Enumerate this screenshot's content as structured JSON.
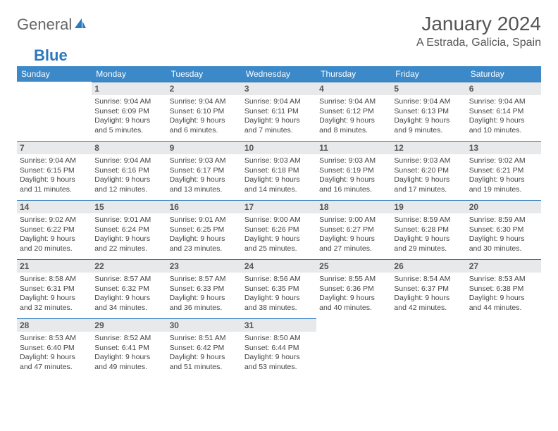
{
  "brand": {
    "part1": "General",
    "part2": "Blue"
  },
  "title": "January 2024",
  "location": "A Estrada, Galicia, Spain",
  "colors": {
    "header_bg": "#3b89c9",
    "daynum_bg": "#e7e9ea",
    "daynum_border": "#2b78bd",
    "text": "#444444",
    "title_text": "#555555"
  },
  "typography": {
    "title_fontsize": 28,
    "location_fontsize": 16,
    "weekday_fontsize": 12,
    "daynum_fontsize": 12,
    "body_fontsize": 10.5
  },
  "layout": {
    "columns": 7,
    "rows": 5
  },
  "weekdays": [
    "Sunday",
    "Monday",
    "Tuesday",
    "Wednesday",
    "Thursday",
    "Friday",
    "Saturday"
  ],
  "weeks": [
    [
      {
        "n": "",
        "lines": []
      },
      {
        "n": "1",
        "lines": [
          "Sunrise: 9:04 AM",
          "Sunset: 6:09 PM",
          "Daylight: 9 hours",
          "and 5 minutes."
        ]
      },
      {
        "n": "2",
        "lines": [
          "Sunrise: 9:04 AM",
          "Sunset: 6:10 PM",
          "Daylight: 9 hours",
          "and 6 minutes."
        ]
      },
      {
        "n": "3",
        "lines": [
          "Sunrise: 9:04 AM",
          "Sunset: 6:11 PM",
          "Daylight: 9 hours",
          "and 7 minutes."
        ]
      },
      {
        "n": "4",
        "lines": [
          "Sunrise: 9:04 AM",
          "Sunset: 6:12 PM",
          "Daylight: 9 hours",
          "and 8 minutes."
        ]
      },
      {
        "n": "5",
        "lines": [
          "Sunrise: 9:04 AM",
          "Sunset: 6:13 PM",
          "Daylight: 9 hours",
          "and 9 minutes."
        ]
      },
      {
        "n": "6",
        "lines": [
          "Sunrise: 9:04 AM",
          "Sunset: 6:14 PM",
          "Daylight: 9 hours",
          "and 10 minutes."
        ]
      }
    ],
    [
      {
        "n": "7",
        "lines": [
          "Sunrise: 9:04 AM",
          "Sunset: 6:15 PM",
          "Daylight: 9 hours",
          "and 11 minutes."
        ]
      },
      {
        "n": "8",
        "lines": [
          "Sunrise: 9:04 AM",
          "Sunset: 6:16 PM",
          "Daylight: 9 hours",
          "and 12 minutes."
        ]
      },
      {
        "n": "9",
        "lines": [
          "Sunrise: 9:03 AM",
          "Sunset: 6:17 PM",
          "Daylight: 9 hours",
          "and 13 minutes."
        ]
      },
      {
        "n": "10",
        "lines": [
          "Sunrise: 9:03 AM",
          "Sunset: 6:18 PM",
          "Daylight: 9 hours",
          "and 14 minutes."
        ]
      },
      {
        "n": "11",
        "lines": [
          "Sunrise: 9:03 AM",
          "Sunset: 6:19 PM",
          "Daylight: 9 hours",
          "and 16 minutes."
        ]
      },
      {
        "n": "12",
        "lines": [
          "Sunrise: 9:03 AM",
          "Sunset: 6:20 PM",
          "Daylight: 9 hours",
          "and 17 minutes."
        ]
      },
      {
        "n": "13",
        "lines": [
          "Sunrise: 9:02 AM",
          "Sunset: 6:21 PM",
          "Daylight: 9 hours",
          "and 19 minutes."
        ]
      }
    ],
    [
      {
        "n": "14",
        "lines": [
          "Sunrise: 9:02 AM",
          "Sunset: 6:22 PM",
          "Daylight: 9 hours",
          "and 20 minutes."
        ]
      },
      {
        "n": "15",
        "lines": [
          "Sunrise: 9:01 AM",
          "Sunset: 6:24 PM",
          "Daylight: 9 hours",
          "and 22 minutes."
        ]
      },
      {
        "n": "16",
        "lines": [
          "Sunrise: 9:01 AM",
          "Sunset: 6:25 PM",
          "Daylight: 9 hours",
          "and 23 minutes."
        ]
      },
      {
        "n": "17",
        "lines": [
          "Sunrise: 9:00 AM",
          "Sunset: 6:26 PM",
          "Daylight: 9 hours",
          "and 25 minutes."
        ]
      },
      {
        "n": "18",
        "lines": [
          "Sunrise: 9:00 AM",
          "Sunset: 6:27 PM",
          "Daylight: 9 hours",
          "and 27 minutes."
        ]
      },
      {
        "n": "19",
        "lines": [
          "Sunrise: 8:59 AM",
          "Sunset: 6:28 PM",
          "Daylight: 9 hours",
          "and 29 minutes."
        ]
      },
      {
        "n": "20",
        "lines": [
          "Sunrise: 8:59 AM",
          "Sunset: 6:30 PM",
          "Daylight: 9 hours",
          "and 30 minutes."
        ]
      }
    ],
    [
      {
        "n": "21",
        "lines": [
          "Sunrise: 8:58 AM",
          "Sunset: 6:31 PM",
          "Daylight: 9 hours",
          "and 32 minutes."
        ]
      },
      {
        "n": "22",
        "lines": [
          "Sunrise: 8:57 AM",
          "Sunset: 6:32 PM",
          "Daylight: 9 hours",
          "and 34 minutes."
        ]
      },
      {
        "n": "23",
        "lines": [
          "Sunrise: 8:57 AM",
          "Sunset: 6:33 PM",
          "Daylight: 9 hours",
          "and 36 minutes."
        ]
      },
      {
        "n": "24",
        "lines": [
          "Sunrise: 8:56 AM",
          "Sunset: 6:35 PM",
          "Daylight: 9 hours",
          "and 38 minutes."
        ]
      },
      {
        "n": "25",
        "lines": [
          "Sunrise: 8:55 AM",
          "Sunset: 6:36 PM",
          "Daylight: 9 hours",
          "and 40 minutes."
        ]
      },
      {
        "n": "26",
        "lines": [
          "Sunrise: 8:54 AM",
          "Sunset: 6:37 PM",
          "Daylight: 9 hours",
          "and 42 minutes."
        ]
      },
      {
        "n": "27",
        "lines": [
          "Sunrise: 8:53 AM",
          "Sunset: 6:38 PM",
          "Daylight: 9 hours",
          "and 44 minutes."
        ]
      }
    ],
    [
      {
        "n": "28",
        "lines": [
          "Sunrise: 8:53 AM",
          "Sunset: 6:40 PM",
          "Daylight: 9 hours",
          "and 47 minutes."
        ]
      },
      {
        "n": "29",
        "lines": [
          "Sunrise: 8:52 AM",
          "Sunset: 6:41 PM",
          "Daylight: 9 hours",
          "and 49 minutes."
        ]
      },
      {
        "n": "30",
        "lines": [
          "Sunrise: 8:51 AM",
          "Sunset: 6:42 PM",
          "Daylight: 9 hours",
          "and 51 minutes."
        ]
      },
      {
        "n": "31",
        "lines": [
          "Sunrise: 8:50 AM",
          "Sunset: 6:44 PM",
          "Daylight: 9 hours",
          "and 53 minutes."
        ]
      },
      {
        "n": "",
        "lines": []
      },
      {
        "n": "",
        "lines": []
      },
      {
        "n": "",
        "lines": []
      }
    ]
  ]
}
